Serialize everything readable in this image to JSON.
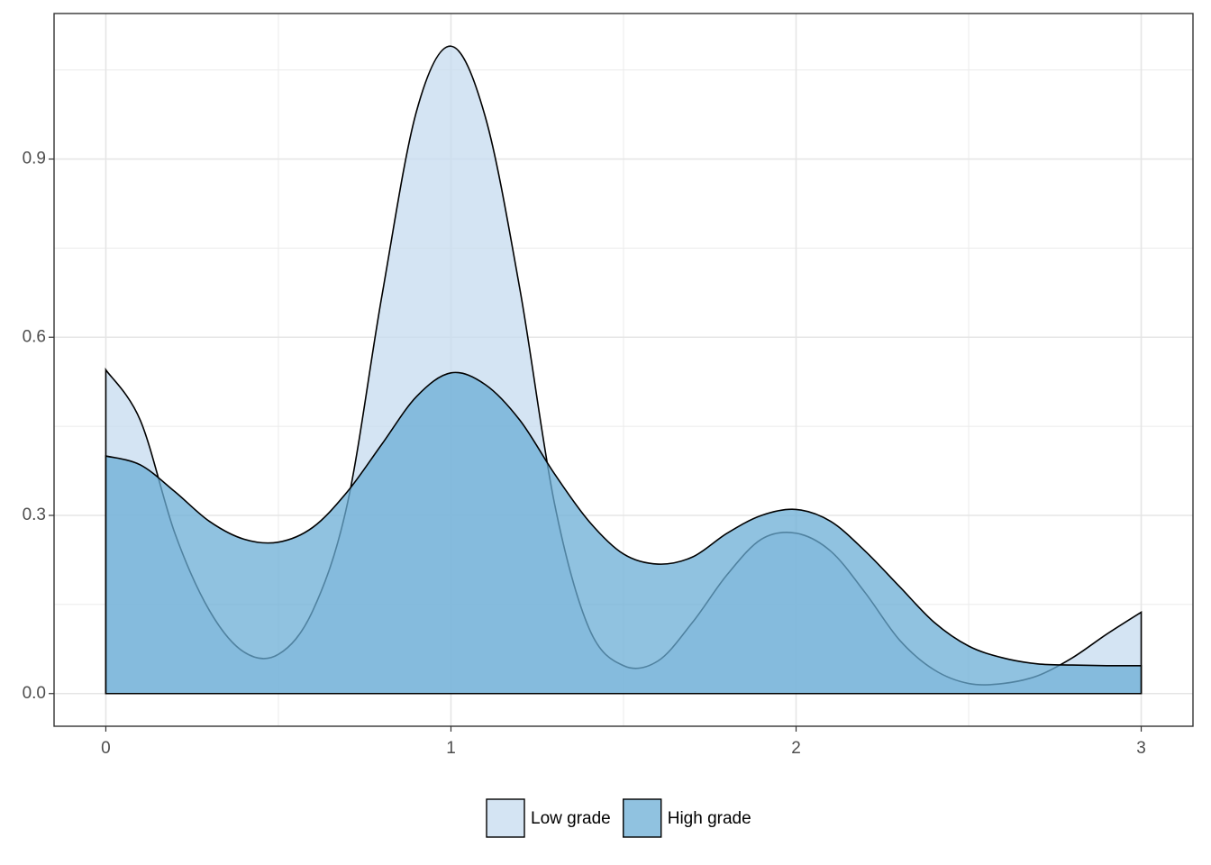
{
  "chart_data": {
    "type": "area",
    "x": [
      0,
      0.1,
      0.2,
      0.3,
      0.4,
      0.5,
      0.6,
      0.7,
      0.8,
      0.9,
      1,
      1.1,
      1.2,
      1.3,
      1.4,
      1.5,
      1.6,
      1.7,
      1.8,
      1.9,
      2,
      2.1,
      2.2,
      2.3,
      2.4,
      2.5,
      2.6,
      2.7,
      2.8,
      2.9,
      3
    ],
    "series": [
      {
        "name": "Low grade",
        "color": "#c6dbef",
        "values": [
          0.545,
          0.46,
          0.27,
          0.14,
          0.07,
          0.066,
          0.14,
          0.32,
          0.67,
          0.98,
          1.09,
          0.97,
          0.68,
          0.32,
          0.11,
          0.047,
          0.055,
          0.12,
          0.2,
          0.26,
          0.27,
          0.24,
          0.17,
          0.09,
          0.04,
          0.017,
          0.017,
          0.03,
          0.06,
          0.1,
          0.137
        ]
      },
      {
        "name": "High grade",
        "color": "#6baed6",
        "values": [
          0.4,
          0.385,
          0.34,
          0.29,
          0.26,
          0.255,
          0.28,
          0.34,
          0.42,
          0.5,
          0.54,
          0.52,
          0.46,
          0.37,
          0.29,
          0.235,
          0.218,
          0.23,
          0.27,
          0.3,
          0.31,
          0.29,
          0.24,
          0.18,
          0.12,
          0.08,
          0.06,
          0.05,
          0.048,
          0.047,
          0.047
        ]
      }
    ],
    "alpha": 0.75,
    "xlim": [
      -0.15,
      3.15
    ],
    "xticks": [
      0,
      1,
      2,
      3
    ],
    "xminor": [
      0.5,
      1.5,
      2.5
    ],
    "ylim": [
      -0.055,
      1.145
    ],
    "yticks": [
      {
        "value": 0,
        "label": "0.0"
      },
      0.3,
      0.6,
      0.9
    ],
    "yminor": [
      0.15,
      0.45,
      0.75,
      1.05
    ],
    "grid": true,
    "legend": "bottom"
  }
}
